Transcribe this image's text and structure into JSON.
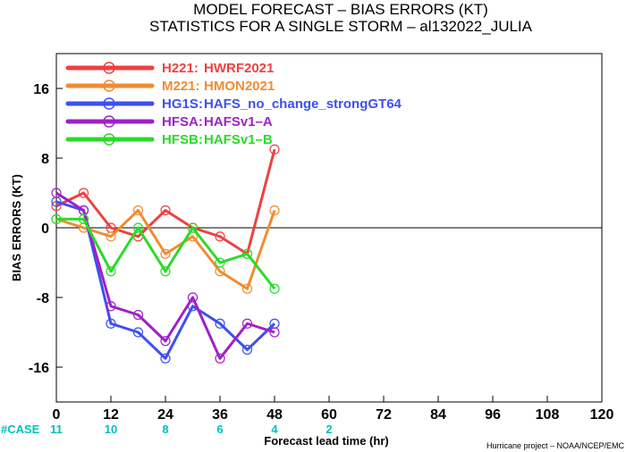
{
  "chart_data": {
    "type": "line",
    "title": "MODEL FORECAST – BIAS ERRORS (KT)",
    "subtitle": "STATISTICS FOR A SINGLE STORM – al132022_JULIA",
    "xlabel": "Forecast lead time (hr)",
    "ylabel": "BIAS ERRORS (KT)",
    "xlim": [
      0,
      120
    ],
    "ylim": [
      -20,
      20
    ],
    "xticks": [
      0,
      12,
      24,
      36,
      48,
      60,
      72,
      84,
      96,
      108,
      120
    ],
    "yticks": [
      -16,
      -8,
      0,
      8,
      16
    ],
    "zero_line": true,
    "grid": false,
    "legend_position": "top-left",
    "case_label": "#CASE",
    "case_counts": [
      {
        "x": 0,
        "n": "11"
      },
      {
        "x": 12,
        "n": "10"
      },
      {
        "x": 24,
        "n": "8"
      },
      {
        "x": 36,
        "n": "6"
      },
      {
        "x": 48,
        "n": "4"
      },
      {
        "x": 60,
        "n": "2"
      }
    ],
    "x": [
      0,
      6,
      12,
      18,
      24,
      30,
      36,
      42,
      48
    ],
    "series": [
      {
        "code": "H221:",
        "name": "HWRF2021",
        "color": "#f04040",
        "values": [
          2.5,
          4,
          0,
          -1,
          2,
          0,
          -1,
          -3,
          9
        ]
      },
      {
        "code": "M221:",
        "name": "HMON2021",
        "color": "#f08c32",
        "values": [
          1,
          0,
          -1,
          2,
          -3,
          -1,
          -5,
          -7,
          2
        ]
      },
      {
        "code": "HG1S:",
        "name": "HAFS_no_change_strongGT64",
        "color": "#3c50f0",
        "values": [
          3,
          2,
          -11,
          -12,
          -15,
          -9,
          -11,
          -14,
          -11
        ]
      },
      {
        "code": "HFSA:",
        "name": "HAFSv1–A",
        "color": "#a020c8",
        "values": [
          4,
          2,
          -9,
          -10,
          -13,
          -8,
          -15,
          -11,
          -12
        ]
      },
      {
        "code": "HFSB:",
        "name": "HAFSv1–B",
        "color": "#28dc28",
        "values": [
          1,
          1,
          -5,
          0,
          -5,
          0,
          -4,
          -3,
          -7
        ]
      }
    ]
  },
  "credit": "Hurricane project – NOAA/NCEP/EMC"
}
